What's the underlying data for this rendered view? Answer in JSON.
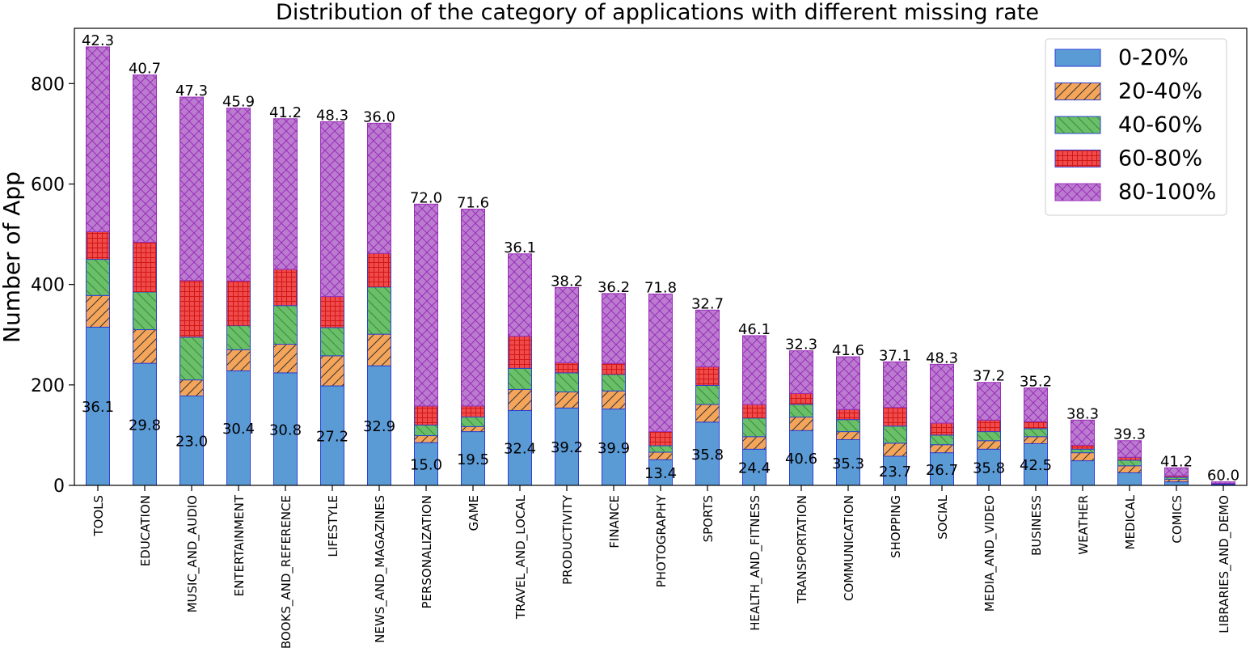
{
  "chart_data": {
    "type": "bar",
    "stacked": true,
    "title": "Distribution of the category of applications with different missing rate",
    "xlabel": "",
    "ylabel": "Number of App",
    "ylim": [
      0,
      910
    ],
    "yticks": [
      0,
      200,
      400,
      600,
      800
    ],
    "legend_position": "top-right",
    "categories": [
      "TOOLS",
      "EDUCATION",
      "MUSIC_AND_AUDIO",
      "ENTERTAINMENT",
      "BOOKS_AND_REFERENCE",
      "LIFESTYLE",
      "NEWS_AND_MAGAZINES",
      "PERSONALIZATION",
      "GAME",
      "TRAVEL_AND_LOCAL",
      "PRODUCTIVITY",
      "FINANCE",
      "PHOTOGRAPHY",
      "SPORTS",
      "HEALTH_AND_FITNESS",
      "TRANSPORTATION",
      "COMMUNICATION",
      "SHOPPING",
      "SOCIAL",
      "MEDIA_AND_VIDEO",
      "BUSINESS",
      "WEATHER",
      "MEDICAL",
      "COMICS",
      "LIBRARIES_AND_DEMO"
    ],
    "series": [
      {
        "name": "0-20%",
        "color": "#5b9bd5",
        "edge": "#2b3fd8",
        "pattern": "none",
        "values": [
          315,
          243,
          178,
          228,
          224,
          198,
          238,
          85,
          107,
          149,
          154,
          152,
          51,
          126,
          72,
          109,
          91,
          58,
          65,
          72,
          83,
          49,
          25,
          7,
          1
        ]
      },
      {
        "name": "20-40%",
        "color": "#f5a55a",
        "edge": "#2b3fd8",
        "pattern": "slash",
        "values": [
          63,
          67,
          32,
          42,
          57,
          60,
          63,
          14,
          10,
          42,
          32,
          36,
          15,
          35,
          25,
          27,
          16,
          26,
          16,
          17,
          14,
          16,
          14,
          5,
          1
        ]
      },
      {
        "name": "40-60%",
        "color": "#6abf69",
        "edge": "#2b3fd8",
        "pattern": "backslash",
        "values": [
          72,
          75,
          85,
          48,
          77,
          56,
          94,
          21,
          19,
          42,
          38,
          33,
          13,
          38,
          37,
          25,
          24,
          34,
          19,
          18,
          16,
          7,
          11,
          4,
          1
        ]
      },
      {
        "name": "60-80%",
        "color": "#f04a4a",
        "edge": "#2b3fd8",
        "pattern": "grid",
        "values": [
          55,
          99,
          113,
          89,
          72,
          62,
          67,
          38,
          22,
          64,
          20,
          22,
          28,
          37,
          27,
          22,
          20,
          37,
          24,
          23,
          14,
          8,
          6,
          3,
          1
        ]
      },
      {
        "name": "80-100%",
        "color": "#bb7cd0",
        "edge": "#9a2fb8",
        "pattern": "cross",
        "values": [
          368,
          333,
          365,
          344,
          300,
          348,
          259,
          402,
          392,
          164,
          150,
          139,
          274,
          113,
          137,
          85,
          105,
          91,
          117,
          75,
          67,
          50,
          33,
          16,
          3
        ]
      }
    ],
    "top_labels": [
      "42.3",
      "40.7",
      "47.3",
      "45.9",
      "41.2",
      "48.3",
      "36.0",
      "72.0",
      "71.6",
      "36.1",
      "38.2",
      "36.2",
      "71.8",
      "32.7",
      "46.1",
      "32.3",
      "41.6",
      "37.1",
      "48.3",
      "37.2",
      "35.2",
      "38.3",
      "39.3",
      "41.2",
      "60.0"
    ],
    "inner_labels": [
      "36.1",
      "29.8",
      "23.0",
      "30.4",
      "30.8",
      "27.2",
      "32.9",
      "15.0",
      "19.5",
      "32.4",
      "39.2",
      "39.9",
      "13.4",
      "35.8",
      "24.4",
      "40.6",
      "35.3",
      "23.7",
      "26.7",
      "35.8",
      "42.5",
      "",
      "",
      "",
      ""
    ]
  }
}
